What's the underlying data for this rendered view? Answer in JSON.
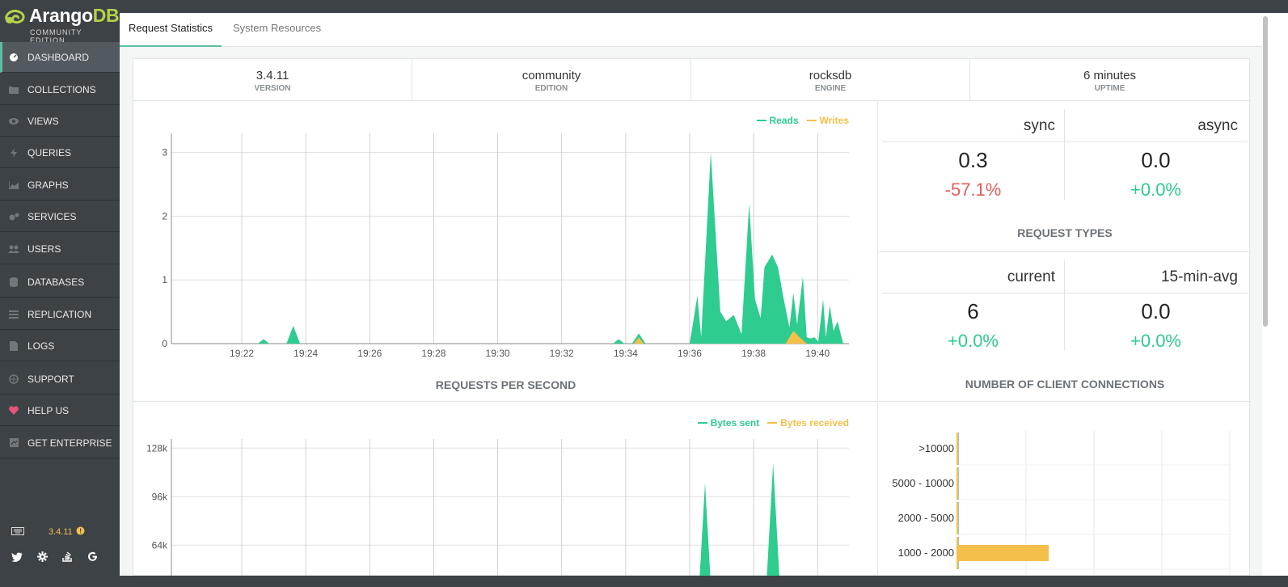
{
  "brand": {
    "name_a": "Arango",
    "name_b": "DB",
    "edition": "COMMUNITY EDITION"
  },
  "nav": {
    "items": [
      {
        "label": "DASHBOARD",
        "icon": "dashboard-icon"
      },
      {
        "label": "COLLECTIONS",
        "icon": "folder-icon"
      },
      {
        "label": "VIEWS",
        "icon": "eye-icon"
      },
      {
        "label": "QUERIES",
        "icon": "bolt-icon"
      },
      {
        "label": "GRAPHS",
        "icon": "area-chart-icon"
      },
      {
        "label": "SERVICES",
        "icon": "cogs-icon"
      },
      {
        "label": "USERS",
        "icon": "users-icon"
      },
      {
        "label": "DATABASES",
        "icon": "database-icon"
      },
      {
        "label": "REPLICATION",
        "icon": "list-icon"
      },
      {
        "label": "LOGS",
        "icon": "file-icon"
      },
      {
        "label": "SUPPORT",
        "icon": "globe-icon"
      },
      {
        "label": "HELP US",
        "icon": "heart-icon"
      },
      {
        "label": "GET ENTERPRISE",
        "icon": "enterprise-icon"
      }
    ]
  },
  "sidebar_footer": {
    "version": "3.4.11"
  },
  "tabs": [
    {
      "label": "Request Statistics",
      "active": true
    },
    {
      "label": "System Resources",
      "active": false
    }
  ],
  "stats": [
    {
      "value": "3.4.11",
      "key": "VERSION"
    },
    {
      "value": "community",
      "key": "EDITION"
    },
    {
      "value": "rocksdb",
      "key": "ENGINE"
    },
    {
      "value": "6 minutes",
      "key": "UPTIME"
    }
  ],
  "request_types": {
    "title": "REQUEST TYPES",
    "sync_label": "sync",
    "async_label": "async",
    "sync_value": "0.3",
    "async_value": "0.0",
    "sync_change": "-57.1%",
    "async_change": "+0.0%"
  },
  "connections": {
    "title": "NUMBER OF CLIENT CONNECTIONS",
    "current_label": "current",
    "avg_label": "15-min-avg",
    "current_value": "6",
    "avg_value": "0.0",
    "current_change": "+0.0%",
    "avg_change": "+0.0%"
  },
  "colors": {
    "accent": "#5bc0a1",
    "reads": "#2ecc8f",
    "writes": "#f5c04a",
    "negative": "#e95b5b",
    "positive": "#2ecc8f"
  },
  "chart_data": [
    {
      "type": "area",
      "title": "REQUESTS PER SECOND",
      "x_ticks": [
        "19:22",
        "19:24",
        "19:26",
        "19:28",
        "19:30",
        "19:32",
        "19:34",
        "19:36",
        "19:38",
        "19:40"
      ],
      "y_ticks": [
        "0",
        "1",
        "2",
        "3"
      ],
      "ylim": [
        0,
        3.3
      ],
      "xlim": [
        19.33,
        19.683
      ],
      "series": [
        {
          "name": "Reads",
          "color": "#2ecc8f",
          "points": [
            [
              19.33,
              0
            ],
            [
              19.375,
              0
            ],
            [
              19.378,
              0.07
            ],
            [
              19.381,
              0
            ],
            [
              19.39,
              0
            ],
            [
              19.3935,
              0.28
            ],
            [
              19.397,
              0
            ],
            [
              19.56,
              0
            ],
            [
              19.563,
              0.07
            ],
            [
              19.566,
              0
            ],
            [
              19.57,
              0
            ],
            [
              19.5735,
              0.16
            ],
            [
              19.577,
              0
            ],
            [
              19.6,
              0
            ],
            [
              19.604,
              0.75
            ],
            [
              19.606,
              0.1
            ],
            [
              19.611,
              3.0
            ],
            [
              19.616,
              0.5
            ],
            [
              19.619,
              0.35
            ],
            [
              19.623,
              0.45
            ],
            [
              19.627,
              0.15
            ],
            [
              19.631,
              2.2
            ],
            [
              19.634,
              0.7
            ],
            [
              19.637,
              0.4
            ],
            [
              19.639,
              1.2
            ],
            [
              19.643,
              1.4
            ],
            [
              19.646,
              1.2
            ],
            [
              19.649,
              0.7
            ],
            [
              19.652,
              0.25
            ],
            [
              19.654,
              0.8
            ],
            [
              19.656,
              0.3
            ],
            [
              19.659,
              1.05
            ],
            [
              19.661,
              0.1
            ],
            [
              19.663,
              0.08
            ],
            [
              19.665,
              0.1
            ],
            [
              19.667,
              0.03
            ],
            [
              19.6695,
              0.7
            ],
            [
              19.671,
              0.1
            ],
            [
              19.673,
              0.6
            ],
            [
              19.675,
              0.2
            ],
            [
              19.677,
              0.35
            ],
            [
              19.68,
              0
            ],
            [
              19.683,
              0
            ]
          ]
        },
        {
          "name": "Writes",
          "color": "#f5c04a",
          "points": [
            [
              19.33,
              0
            ],
            [
              19.571,
              0
            ],
            [
              19.5735,
              0.1
            ],
            [
              19.576,
              0
            ],
            [
              19.65,
              0
            ],
            [
              19.654,
              0.2
            ],
            [
              19.658,
              0.08
            ],
            [
              19.661,
              0
            ],
            [
              19.683,
              0
            ]
          ]
        }
      ]
    },
    {
      "type": "area",
      "title": "",
      "x_ticks": [],
      "y_ticks": [
        "64k",
        "96k",
        "128k"
      ],
      "ylim": [
        38000,
        134000
      ],
      "xlim": [
        19.33,
        19.683
      ],
      "series": [
        {
          "name": "Bytes sent",
          "color": "#2ecc8f",
          "points": [
            [
              19.33,
              38000
            ],
            [
              19.605,
              38000
            ],
            [
              19.608,
              105000
            ],
            [
              19.611,
              38000
            ],
            [
              19.64,
              38000
            ],
            [
              19.6435,
              118000
            ],
            [
              19.647,
              38000
            ],
            [
              19.683,
              38000
            ]
          ]
        },
        {
          "name": "Bytes received",
          "color": "#f5c04a",
          "points": [
            [
              19.33,
              38000
            ],
            [
              19.683,
              38000
            ]
          ]
        }
      ]
    },
    {
      "type": "bar",
      "orientation": "horizontal",
      "categories": [
        ">10000",
        "5000 - 10000",
        "2000 - 5000",
        "1000 - 2000"
      ],
      "values": [
        0,
        0,
        0,
        0.45
      ],
      "color": "#f5c04a",
      "xlim": [
        0,
        1.35
      ]
    }
  ]
}
